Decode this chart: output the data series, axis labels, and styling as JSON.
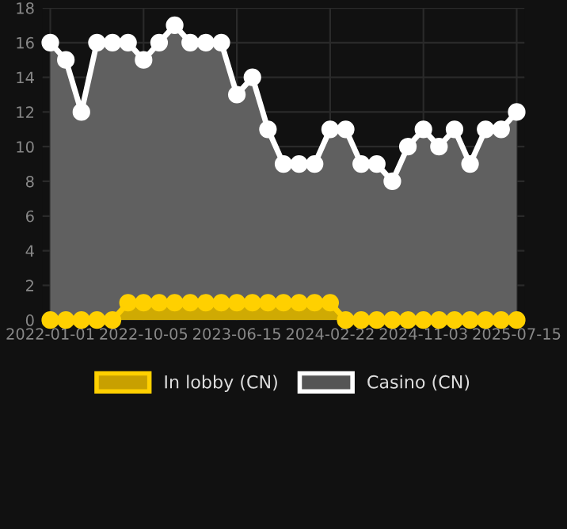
{
  "chart_data": {
    "type": "area",
    "categories": [
      "2022-01-01",
      null,
      null,
      null,
      null,
      null,
      "2022-10-05",
      null,
      null,
      null,
      null,
      null,
      "2023-06-15",
      null,
      null,
      null,
      null,
      null,
      "2024-02-22",
      null,
      null,
      null,
      null,
      null,
      "2024-11-03",
      null,
      null,
      null,
      null,
      null,
      "2025-07-15"
    ],
    "series": [
      {
        "name": "In lobby (CN)",
        "color": "#ffd000",
        "values": [
          0,
          0,
          0,
          0,
          0,
          1,
          1,
          1,
          1,
          1,
          1,
          1,
          1,
          1,
          1,
          1,
          1,
          1,
          1,
          0,
          0,
          0,
          0,
          0,
          0,
          0,
          0,
          0,
          0,
          0,
          0
        ]
      },
      {
        "name": "Casino (CN)",
        "color": "#ffffff",
        "values": [
          16,
          15,
          12,
          16,
          16,
          16,
          15,
          16,
          17,
          16,
          16,
          16,
          13,
          14,
          11,
          9,
          9,
          9,
          11,
          11,
          9,
          9,
          8,
          10,
          11,
          10,
          11,
          9,
          11,
          11,
          12
        ]
      }
    ],
    "ylim": [
      0,
      18
    ],
    "yticks": [
      0,
      2,
      4,
      6,
      8,
      10,
      12,
      14,
      16,
      18
    ],
    "grid": true,
    "legend": "bottom",
    "marker": "circle",
    "line_style": "solid"
  }
}
